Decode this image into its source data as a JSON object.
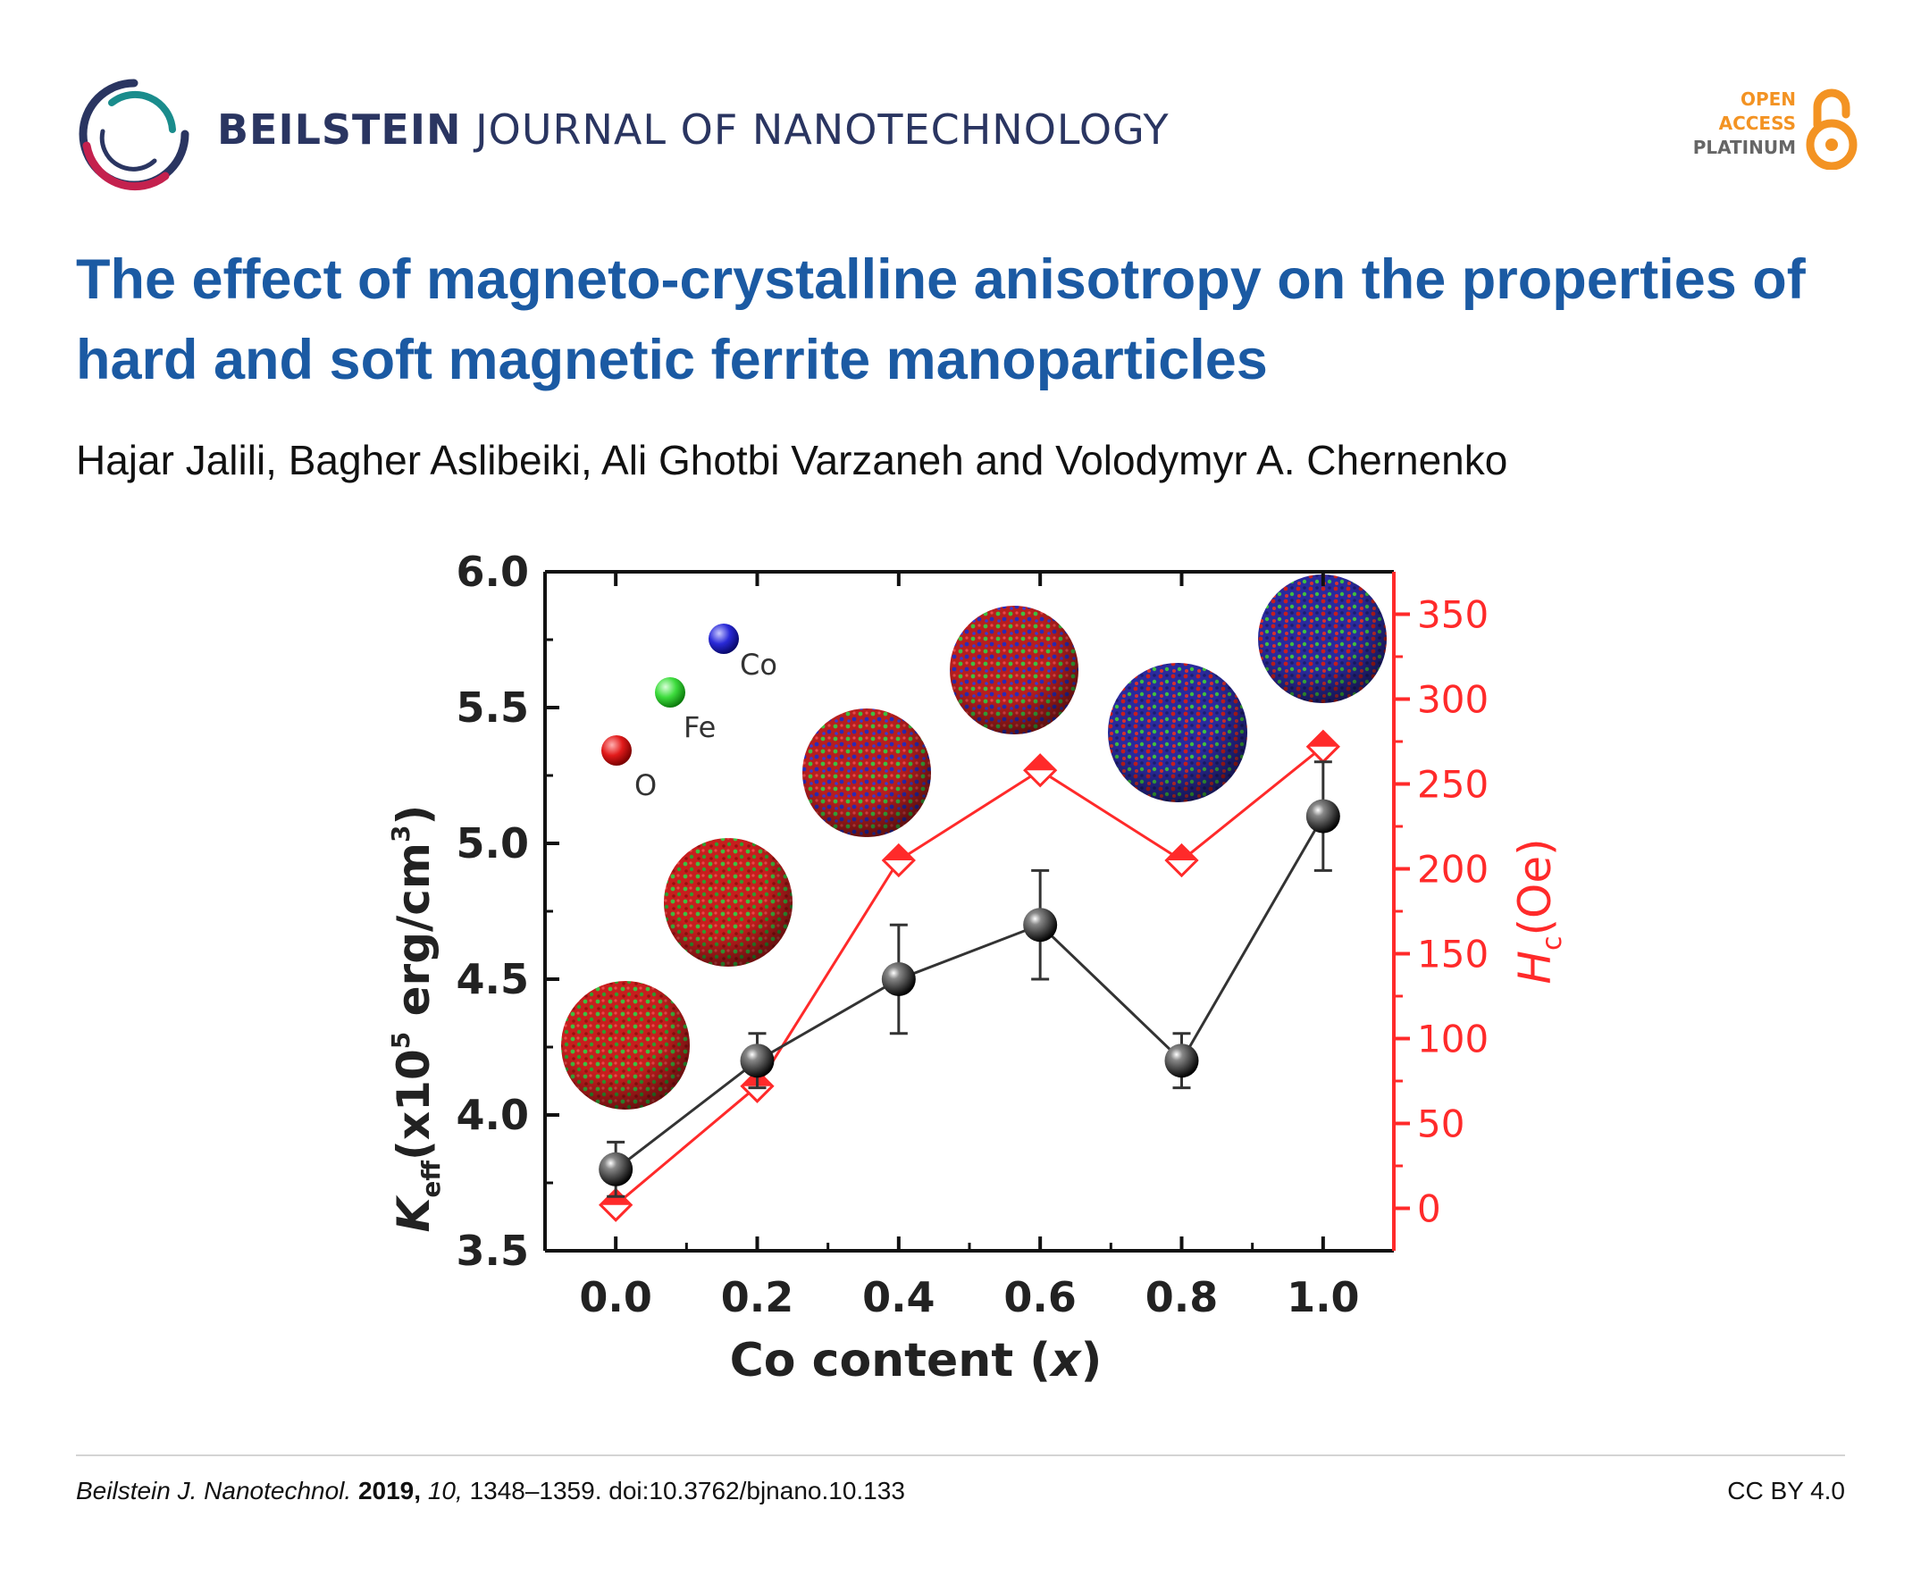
{
  "header": {
    "journal_name_bold": "BEILSTEIN",
    "journal_name_light": "JOURNAL OF NANOTECHNOLOGY",
    "logo_icon": "beilstein-ring-logo",
    "open_access": {
      "line1": "OPEN",
      "line2": "ACCESS",
      "line3": "PLATINUM",
      "icon": "open-lock-icon"
    },
    "colors": {
      "journal": "#2a3561",
      "title": "#1b5aa3",
      "oa_orange": "#f39323"
    }
  },
  "article": {
    "title": "The effect of magneto-crystalline anisotropy on the properties of hard and soft magnetic ferrite manoparticles",
    "authors": "Hajar Jalili, Bagher Aslibeiki, Ali Ghotbi Varzaneh and Volodymyr A. Chernenko"
  },
  "chart_data": {
    "type": "line",
    "x": [
      0.0,
      0.2,
      0.4,
      0.6,
      0.8,
      1.0
    ],
    "xlabel_prefix": "Co content (",
    "xlabel_var": "x",
    "xlabel_suffix": ")",
    "xlim": [
      -0.1,
      1.1
    ],
    "xticks": [
      "0.0",
      "0.2",
      "0.4",
      "0.6",
      "0.8",
      "1.0"
    ],
    "ylim_left": [
      3.5,
      6.0
    ],
    "yticks_left": [
      "3.5",
      "4.0",
      "4.5",
      "5.0",
      "5.5",
      "6.0"
    ],
    "ylabel_left": "Keff(x10^5 erg/cm^3)",
    "ylim_right": [
      -25,
      375
    ],
    "yticks_right": [
      "0",
      "50",
      "100",
      "150",
      "200",
      "250",
      "300",
      "350"
    ],
    "ylabel_right": "Hc(Oe)",
    "series": [
      {
        "name": "Keff",
        "axis": "left",
        "color": "#111111",
        "marker": "sphere",
        "values": [
          3.8,
          4.2,
          4.5,
          4.7,
          4.2,
          5.1
        ],
        "errors": [
          0.1,
          0.1,
          0.2,
          0.2,
          0.1,
          0.2
        ]
      },
      {
        "name": "Hc",
        "axis": "right",
        "color": "#ff2a2a",
        "marker": "diamond",
        "values": [
          2,
          72,
          205,
          258,
          205,
          272
        ]
      }
    ],
    "legend": [
      {
        "label": "O",
        "color": "#e21b1b"
      },
      {
        "label": "Fe",
        "color": "#3ddc3d"
      },
      {
        "label": "Co",
        "color": "#2a2ad8"
      }
    ],
    "annotations": "Nanoparticle renderings for x = 0.0 to 1.0 above the data points"
  },
  "footer": {
    "journal_abbrev": "Beilstein J. Nanotechnol.",
    "year": "2019,",
    "volume": "10,",
    "pages_doi": "1348–1359. doi:10.3762/bjnano.10.133",
    "license": "CC BY 4.0"
  }
}
